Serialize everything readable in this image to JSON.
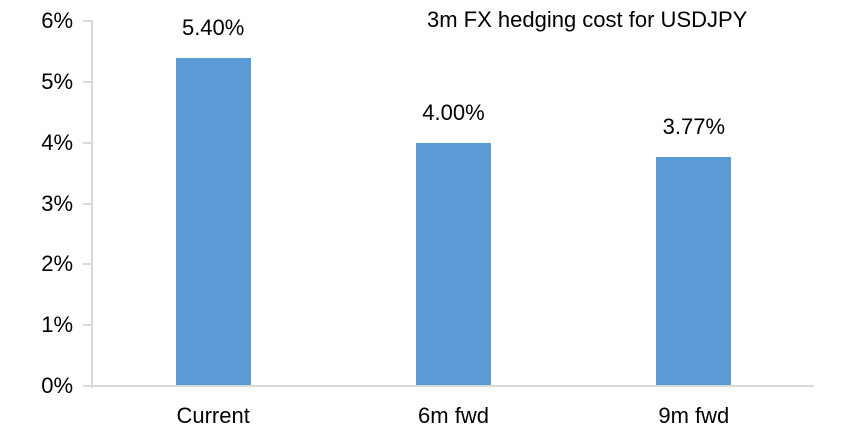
{
  "chart_data": {
    "type": "bar",
    "title": "3m FX hedging cost for USDJPY",
    "categories": [
      "Current",
      "6m fwd",
      "9m fwd"
    ],
    "values": [
      5.4,
      4.0,
      3.77
    ],
    "value_labels": [
      "5.40%",
      "4.00%",
      "3.77%"
    ],
    "xlabel": "",
    "ylabel": "",
    "ylim": [
      0,
      6
    ],
    "yticks": [
      {
        "value": 0,
        "label": "0%"
      },
      {
        "value": 1,
        "label": "1%"
      },
      {
        "value": 2,
        "label": "2%"
      },
      {
        "value": 3,
        "label": "3%"
      },
      {
        "value": 4,
        "label": "4%"
      },
      {
        "value": 5,
        "label": "5%"
      },
      {
        "value": 6,
        "label": "6%"
      }
    ],
    "grid": false,
    "legend": false,
    "colors": {
      "bar": "#5b9bd5",
      "axis": "#d9d9d9",
      "text": "#000000",
      "background": "#ffffff"
    }
  }
}
